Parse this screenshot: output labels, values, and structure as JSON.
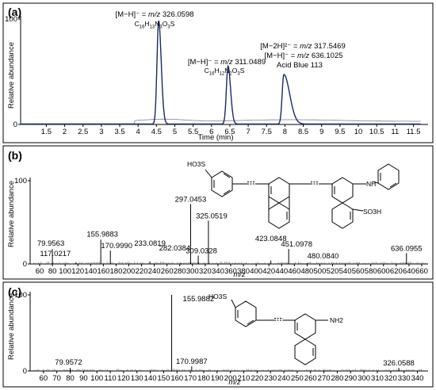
{
  "chart_data": [
    {
      "panel": "(a)",
      "type": "line",
      "xlabel": "Time (min)",
      "ylabel": "Relative abundance",
      "xlim": [
        0.8,
        11.9
      ],
      "ylim": [
        0,
        100
      ],
      "x_ticks": [
        "1.5",
        "2",
        "2.5",
        "3",
        "3.5",
        "4",
        "4.5",
        "5",
        "5.5",
        "6",
        "6.5",
        "7",
        "7.5",
        "8",
        "8.5",
        "9",
        "9.5",
        "10",
        "10.5",
        "11",
        "11.5"
      ],
      "y_ticks": [
        "0",
        "100"
      ],
      "series_color": "#1a2a66",
      "series": [
        {
          "apex_time": 4.56,
          "apex": 98
        },
        {
          "apex_time": 6.45,
          "apex": 55
        },
        {
          "apex_time": 7.97,
          "apex": 47
        }
      ],
      "annotations": [
        {
          "ion": "[M−H]⁻ = ",
          "mz": "m/z",
          "value": "326.0598",
          "formula_parts": [
            "C",
            "16",
            "H",
            "13",
            "N",
            "3",
            "O",
            "3",
            "S"
          ],
          "at_time": 4.56
        },
        {
          "ion": "[M−H]⁻ = ",
          "mz": "m/z",
          "value": "311.0489",
          "formula_parts": [
            "C",
            "16",
            "H",
            "12",
            "N",
            "2",
            "O",
            "3",
            "S"
          ],
          "at_time": 6.45
        },
        {
          "ion2": "[M−2H]²⁻ = ",
          "mz": "m/z",
          "value2": "317.5469",
          "ion1": "[M−H]⁻ = ",
          "value1": "636.1025",
          "name": "Acid Blue 113",
          "at_time": 7.97
        }
      ]
    },
    {
      "panel": "(b)",
      "type": "bar",
      "xlabel": "m/z",
      "ylabel": "Relative abundance",
      "xlim": [
        45,
        670
      ],
      "ylim": [
        0,
        100
      ],
      "x_ticks": [
        "60",
        "80",
        "100",
        "120",
        "140",
        "160",
        "180",
        "200",
        "220",
        "240",
        "260",
        "280",
        "300",
        "320",
        "340",
        "360",
        "380",
        "400",
        "420",
        "440",
        "460",
        "480",
        "500",
        "520",
        "540",
        "560",
        "580",
        "600",
        "620",
        "640",
        "660"
      ],
      "y_ticks": [
        "0",
        "100"
      ],
      "peaks": [
        {
          "mz": 79.9563,
          "value": 18,
          "label": "79.9563"
        },
        {
          "mz": 117.0217,
          "value": 2,
          "label": "117.0217"
        },
        {
          "mz": 155.9883,
          "value": 29,
          "label": "155.9883"
        },
        {
          "mz": 170.999,
          "value": 16,
          "label": "170.9990"
        },
        {
          "mz": 233.0819,
          "value": 3,
          "label": "233.0819"
        },
        {
          "mz": 282.0384,
          "value": 1,
          "label": "282.0384"
        },
        {
          "mz": 297.0453,
          "value": 72,
          "label": "297.0453"
        },
        {
          "mz": 309.0328,
          "value": 10,
          "label": "309.0328"
        },
        {
          "mz": 325.0519,
          "value": 52,
          "label": "325.0519"
        },
        {
          "mz": 423.0848,
          "value": 4,
          "label": "423.0848"
        },
        {
          "mz": 451.0978,
          "value": 18,
          "label": "451.0978"
        },
        {
          "mz": 480.084,
          "value": 1,
          "label": "480.0840"
        },
        {
          "mz": 636.0955,
          "value": 13,
          "label": "636.0955"
        }
      ],
      "structure_labels": {
        "ho3s": "HO3S",
        "nh": "NH",
        "so3h": "SO3H"
      }
    },
    {
      "panel": "(c)",
      "type": "bar",
      "xlabel": "m/z",
      "ylabel": "Relative abundance",
      "xlim": [
        50,
        348
      ],
      "ylim": [
        0,
        100
      ],
      "x_ticks": [
        "60",
        "70",
        "80",
        "90",
        "100",
        "110",
        "120",
        "130",
        "140",
        "150",
        "160",
        "170",
        "180",
        "190",
        "200",
        "210",
        "220",
        "230",
        "240",
        "250",
        "260",
        "270",
        "280",
        "290",
        "300",
        "310",
        "320",
        "330",
        "340"
      ],
      "y_ticks": [
        "0",
        "100"
      ],
      "peaks": [
        {
          "mz": 79.9572,
          "value": 4,
          "label": "79.9572"
        },
        {
          "mz": 155.9882,
          "value": 100,
          "label": "155.9882"
        },
        {
          "mz": 170.9987,
          "value": 6,
          "label": "170.9987"
        },
        {
          "mz": 326.0588,
          "value": 4,
          "label": "326.0588"
        }
      ],
      "structure_labels": {
        "ho3s": "HO3S",
        "nh2": "NH2"
      }
    }
  ]
}
